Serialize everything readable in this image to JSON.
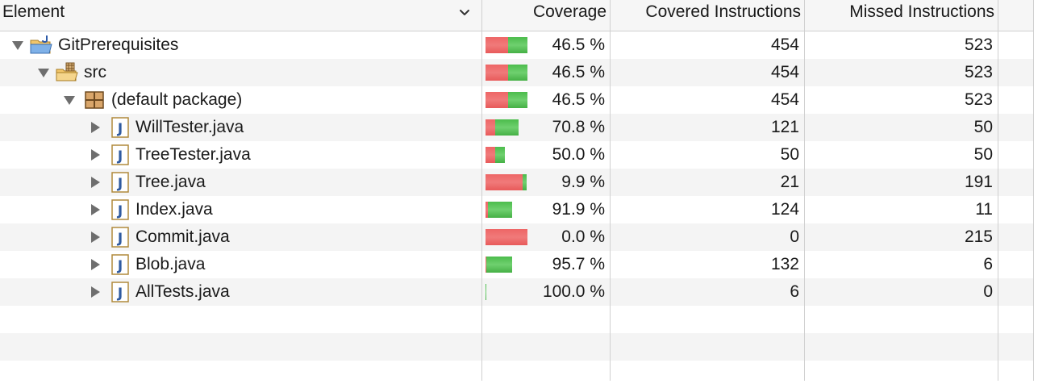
{
  "header": {
    "element": "Element",
    "coverage": "Coverage",
    "covered": "Covered Instructions",
    "missed": "Missed Instructions"
  },
  "colors": {
    "covered": "#5cc75c",
    "missed": "#ee6666"
  },
  "rows": [
    {
      "name": "GitPrerequisites",
      "icon": "java-project-icon",
      "expand": "expanded",
      "coverage": "46.5 %",
      "covered": "454",
      "missed": "523"
    },
    {
      "name": "src",
      "icon": "source-folder-icon",
      "expand": "expanded",
      "coverage": "46.5 %",
      "covered": "454",
      "missed": "523"
    },
    {
      "name": "(default package)",
      "icon": "package-icon",
      "expand": "expanded",
      "coverage": "46.5 %",
      "covered": "454",
      "missed": "523"
    },
    {
      "name": "WillTester.java",
      "icon": "java-file-icon",
      "expand": "collapsed",
      "coverage": "70.8 %",
      "covered": "121",
      "missed": "50"
    },
    {
      "name": "TreeTester.java",
      "icon": "java-file-icon",
      "expand": "collapsed",
      "coverage": "50.0 %",
      "covered": "50",
      "missed": "50"
    },
    {
      "name": "Tree.java",
      "icon": "java-file-icon",
      "expand": "collapsed",
      "coverage": "9.9 %",
      "covered": "21",
      "missed": "191"
    },
    {
      "name": "Index.java",
      "icon": "java-file-icon",
      "expand": "collapsed",
      "coverage": "91.9 %",
      "covered": "124",
      "missed": "11"
    },
    {
      "name": "Commit.java",
      "icon": "java-file-icon",
      "expand": "collapsed",
      "coverage": "0.0 %",
      "covered": "0",
      "missed": "215"
    },
    {
      "name": "Blob.java",
      "icon": "java-file-icon",
      "expand": "collapsed",
      "coverage": "95.7 %",
      "covered": "132",
      "missed": "6"
    },
    {
      "name": "AllTests.java",
      "icon": "java-file-icon",
      "expand": "collapsed",
      "coverage": "100.0 %",
      "covered": "6",
      "missed": "0"
    }
  ]
}
